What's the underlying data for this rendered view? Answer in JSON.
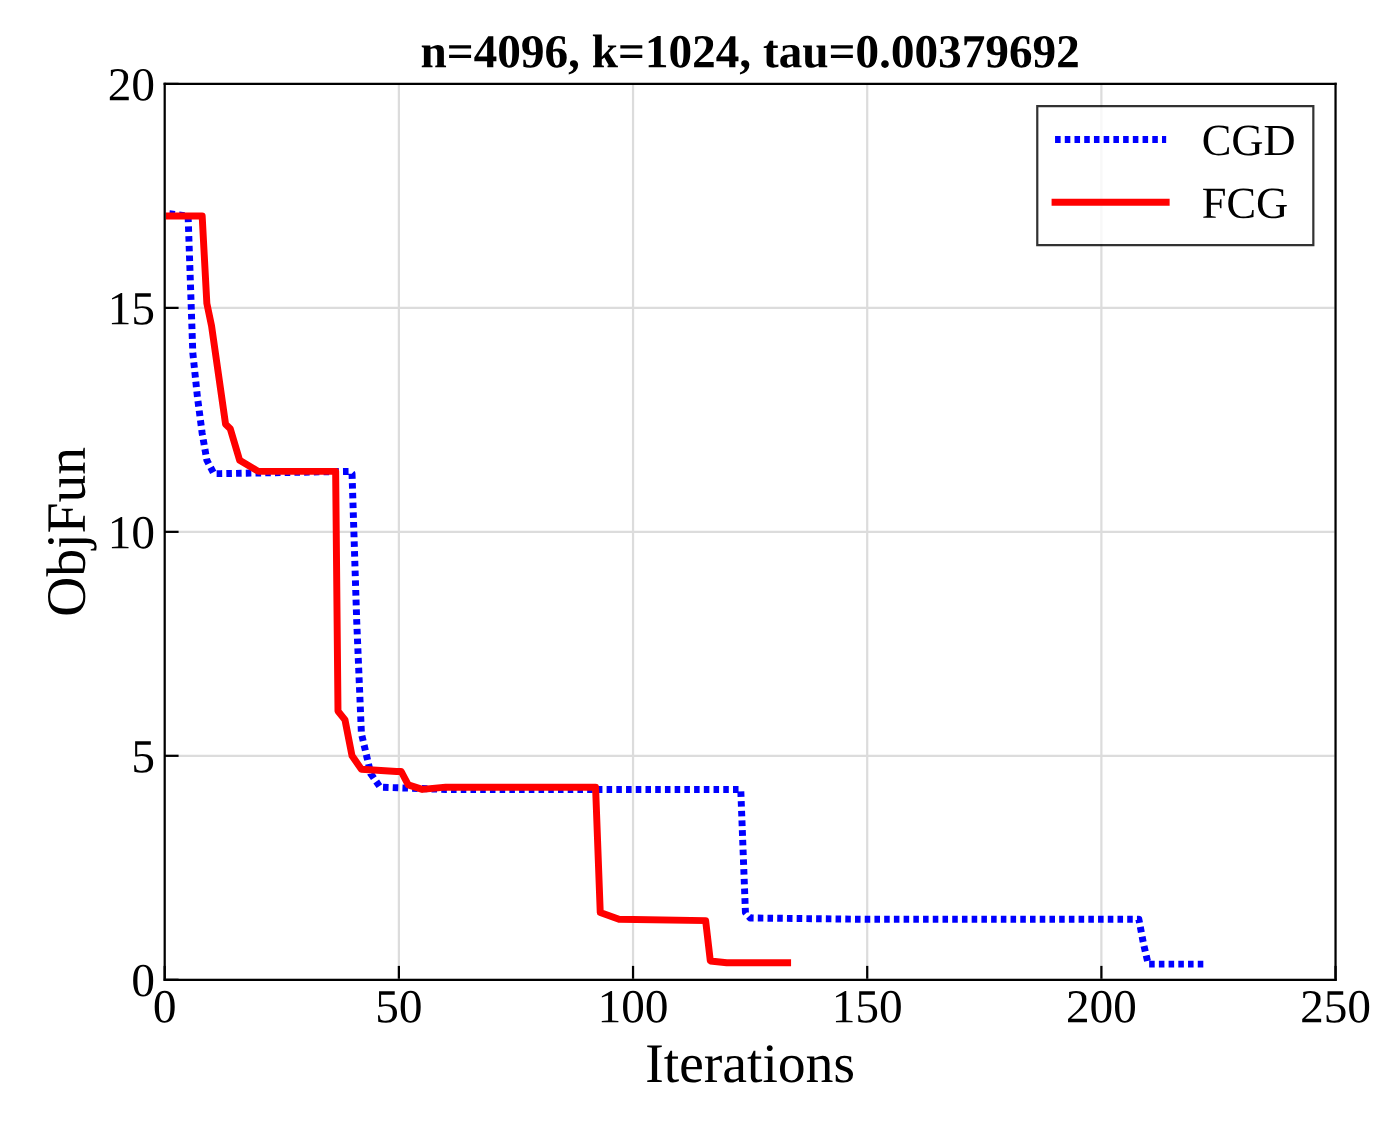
{
  "chart_data": {
    "type": "line",
    "title": "n=4096, k=1024, tau=0.00379692",
    "xlabel": "Iterations",
    "ylabel": "ObjFun",
    "xlim": [
      0,
      250
    ],
    "xticks": [
      0,
      50,
      100,
      150,
      200,
      250
    ],
    "ylim": [
      0,
      20
    ],
    "yticks": [
      0,
      5,
      10,
      15,
      20
    ],
    "grid": true,
    "legend": "top right",
    "series": [
      {
        "name": "CGD",
        "color": "#0000ff",
        "line_style": "dotted",
        "x": [
          1,
          5,
          6,
          7,
          8,
          9,
          10.5,
          12,
          39.5,
          40,
          41,
          42,
          44,
          46,
          60,
          123,
          124,
          125,
          150,
          208,
          209,
          210,
          222
        ],
        "values": [
          17.1,
          17.05,
          14,
          13,
          12.2,
          11.6,
          11.3,
          11.3,
          11.35,
          11.3,
          8,
          5.5,
          4.6,
          4.3,
          4.25,
          4.25,
          1.5,
          1.38,
          1.35,
          1.35,
          0.8,
          0.35,
          0.35
        ]
      },
      {
        "name": "FCG",
        "color": "#ff0000",
        "line_style": "solid",
        "x": [
          1,
          8,
          9,
          10,
          13,
          14,
          16,
          20,
          36.5,
          37,
          38.5,
          40,
          42,
          49.5,
          50.5,
          52,
          55,
          60,
          92,
          93,
          97,
          115.5,
          116.5,
          120,
          133
        ],
        "values": [
          17.05,
          17.05,
          15.1,
          14.6,
          12.4,
          12.3,
          11.6,
          11.35,
          11.35,
          6.0,
          5.8,
          5.0,
          4.7,
          4.65,
          4.65,
          4.35,
          4.25,
          4.3,
          4.3,
          1.5,
          1.35,
          1.32,
          0.42,
          0.38,
          0.38
        ]
      }
    ]
  }
}
